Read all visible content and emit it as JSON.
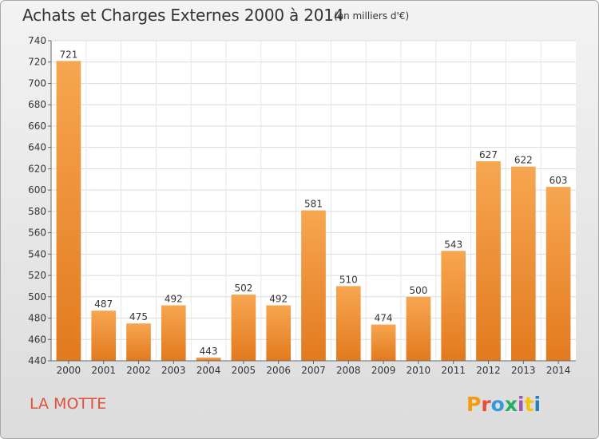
{
  "header": {
    "title": "Achats et Charges Externes 2000 à 2014",
    "subtitle": "(en milliers d'€)"
  },
  "footer": {
    "location": "LA MOTTE",
    "logo": "Proxiti",
    "logo_colors": [
      "#f39c12",
      "#e74c3c",
      "#3498db",
      "#27ae60",
      "#9b59b6",
      "#f1c40f",
      "#2980b9"
    ]
  },
  "chart_data": {
    "type": "bar",
    "categories": [
      "2000",
      "2001",
      "2002",
      "2003",
      "2004",
      "2005",
      "2006",
      "2007",
      "2008",
      "2009",
      "2010",
      "2011",
      "2012",
      "2013",
      "2014"
    ],
    "values": [
      721,
      487,
      475,
      492,
      443,
      502,
      492,
      581,
      510,
      474,
      500,
      543,
      627,
      622,
      603
    ],
    "ylim": [
      440,
      740
    ],
    "yticks": [
      440,
      460,
      480,
      500,
      520,
      540,
      560,
      580,
      600,
      620,
      640,
      660,
      680,
      700,
      720,
      740
    ],
    "grid": true,
    "bar_color": "#f0922e"
  }
}
